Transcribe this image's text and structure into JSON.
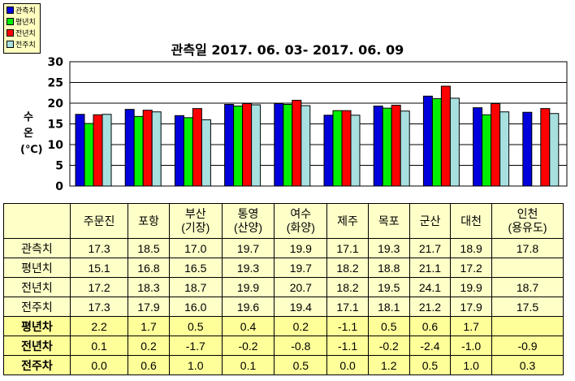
{
  "legend": [
    {
      "label": "관측치",
      "color": "#0000dd"
    },
    {
      "label": "평년치",
      "color": "#00ee00"
    },
    {
      "label": "전년치",
      "color": "#ff0000"
    },
    {
      "label": "전주치",
      "color": "#a8e0e0"
    }
  ],
  "chart_data": {
    "type": "bar",
    "title": "관측일 2017. 06. 03- 2017. 06. 09",
    "ylabel": "수 온 (℃)",
    "ylim": [
      0,
      30
    ],
    "yticks": [
      0,
      5,
      10,
      15,
      20,
      25,
      30
    ],
    "grid": true,
    "legend_position": "top-left",
    "categories": [
      "주문진",
      "포항",
      "부산(기장)",
      "통영(산양)",
      "여수(화양)",
      "제주",
      "목포",
      "군산",
      "대천",
      "인천(용유도)"
    ],
    "series": [
      {
        "name": "관측치",
        "values": [
          17.3,
          18.5,
          17.0,
          19.7,
          19.9,
          17.1,
          19.3,
          21.7,
          18.9,
          17.8
        ]
      },
      {
        "name": "평년치",
        "values": [
          15.1,
          16.8,
          16.5,
          19.3,
          19.7,
          18.2,
          18.8,
          21.1,
          17.2,
          null
        ]
      },
      {
        "name": "전년치",
        "values": [
          17.2,
          18.3,
          18.7,
          19.9,
          20.7,
          18.2,
          19.5,
          24.1,
          19.9,
          18.7
        ]
      },
      {
        "name": "전주치",
        "values": [
          17.3,
          17.9,
          16.0,
          19.6,
          19.4,
          17.1,
          18.1,
          21.2,
          17.9,
          17.5
        ]
      }
    ]
  },
  "table": {
    "header": [
      "",
      "주문진",
      "포항",
      "부산\n(기장)",
      "통영\n(산양)",
      "여수\n(화양)",
      "제주",
      "목포",
      "군산",
      "대천",
      "인천\n(용유도)"
    ],
    "rows": [
      [
        "관측치",
        "17.3",
        "18.5",
        "17.0",
        "19.7",
        "19.9",
        "17.1",
        "19.3",
        "21.7",
        "18.9",
        "17.8"
      ],
      [
        "평년치",
        "15.1",
        "16.8",
        "16.5",
        "19.3",
        "19.7",
        "18.2",
        "18.8",
        "21.1",
        "17.2",
        ""
      ],
      [
        "전년치",
        "17.2",
        "18.3",
        "18.7",
        "19.9",
        "20.7",
        "18.2",
        "19.5",
        "24.1",
        "19.9",
        "18.7"
      ],
      [
        "전주치",
        "17.3",
        "17.9",
        "16.0",
        "19.6",
        "19.4",
        "17.1",
        "18.1",
        "21.2",
        "17.9",
        "17.5"
      ],
      [
        "평년차",
        "2.2",
        "1.7",
        "0.5",
        "0.4",
        "0.2",
        "-1.1",
        "0.5",
        "0.6",
        "1.7",
        ""
      ],
      [
        "전년차",
        "0.1",
        "0.2",
        "-1.7",
        "-0.2",
        "-0.8",
        "-1.1",
        "-0.2",
        "-2.4",
        "-1.0",
        "-0.9"
      ],
      [
        "전주차",
        "0.0",
        "0.6",
        "1.0",
        "0.1",
        "0.5",
        "0.0",
        "1.2",
        "0.5",
        "1.0",
        "0.3"
      ]
    ]
  }
}
